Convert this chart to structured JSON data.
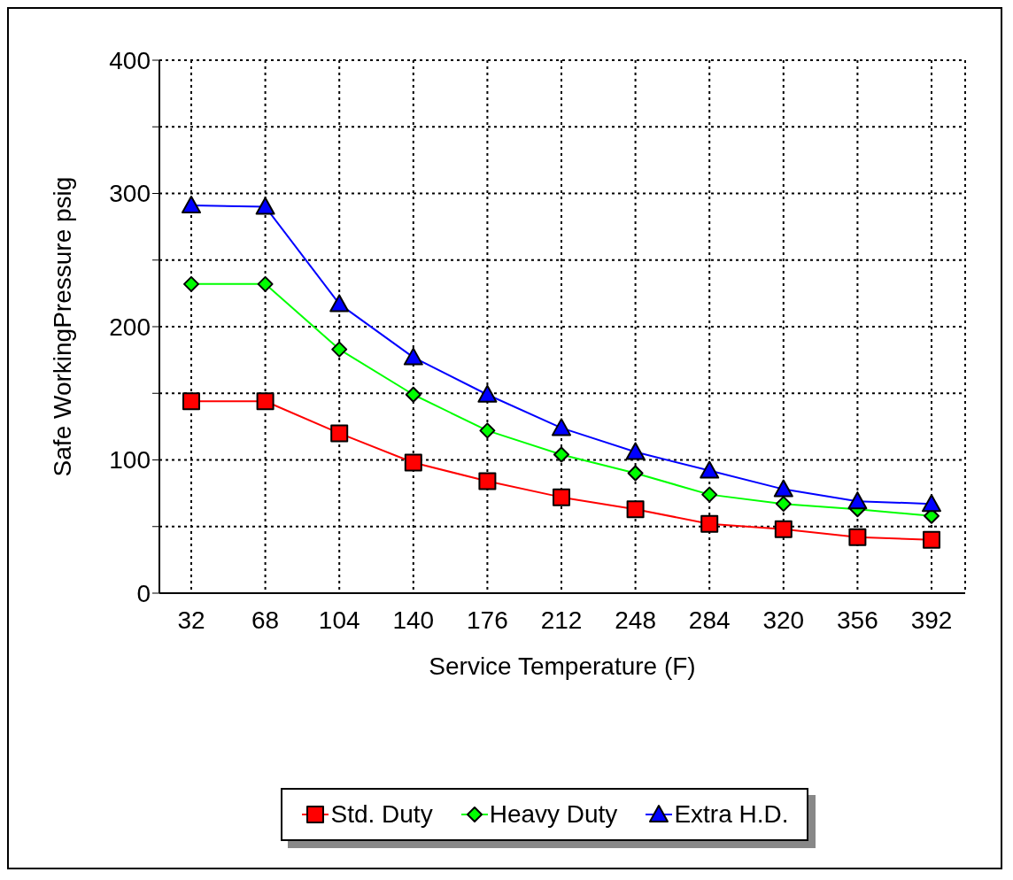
{
  "chart_data": {
    "type": "line",
    "xlabel": "Service Temperature (F)",
    "ylabel": "Safe WorkingPressure psig",
    "categories": [
      "32",
      "68",
      "104",
      "140",
      "176",
      "212",
      "248",
      "284",
      "320",
      "356",
      "392"
    ],
    "ylim": [
      0,
      400
    ],
    "yticks": [
      0,
      {
        "value": 50,
        "label": null
      },
      100,
      {
        "value": 150,
        "label": null
      },
      200,
      {
        "value": 250,
        "label": null
      },
      300,
      {
        "value": 350,
        "label": null
      },
      400
    ],
    "grid": true,
    "legend": "bottom",
    "series": [
      {
        "name": "Std. Duty",
        "color": "#ff0000",
        "marker": "square",
        "values": [
          144,
          144,
          120,
          98,
          84,
          72,
          63,
          52,
          48,
          42,
          40
        ]
      },
      {
        "name": "Heavy Duty",
        "color": "#00ff00",
        "marker": "diamond",
        "values": [
          232,
          232,
          183,
          149,
          122,
          104,
          90,
          74,
          67,
          63,
          58
        ]
      },
      {
        "name": "Extra H.D.",
        "color": "#0000ff",
        "marker": "triangle",
        "values": [
          291,
          290,
          217,
          177,
          149,
          124,
          106,
          92,
          78,
          69,
          67
        ]
      }
    ]
  }
}
